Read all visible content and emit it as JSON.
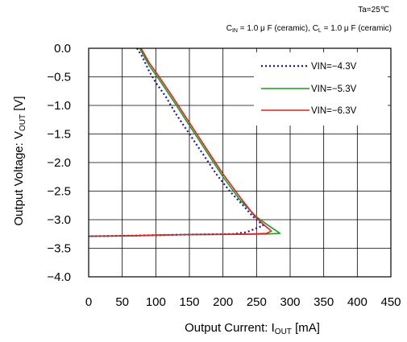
{
  "chart_data": {
    "type": "line",
    "conditions": {
      "temperature": "Ta=25℃",
      "cin_main": "C",
      "cin_sub": "IN",
      "cin_rest": " = 1.0 μ F (ceramic), ",
      "cl_main": "C",
      "cl_sub": "L",
      "cl_rest": " = 1.0 μ F (ceramic)"
    },
    "xlabel": {
      "main": "Output Current: I",
      "sub": "OUT",
      "unit": " [mA]"
    },
    "ylabel": {
      "main": "Output Voltage: V",
      "sub": "OUT",
      "unit": " [V]"
    },
    "xlim": [
      0,
      450
    ],
    "ylim": [
      -4.0,
      0.0
    ],
    "xticks": [
      "0",
      "50",
      "100",
      "150",
      "200",
      "250",
      "300",
      "350",
      "400",
      "450"
    ],
    "yticks": [
      "0.0",
      "−0.5",
      "−1.0",
      "−1.5",
      "−2.0",
      "−2.5",
      "−3.0",
      "−3.5",
      "−4.0"
    ],
    "grid": true,
    "legend_position": "top-right",
    "series": [
      {
        "name": "VIN=−4.3V",
        "color": "#1a1aa6",
        "style": "dotted",
        "points": [
          [
            72,
            0.0
          ],
          [
            80,
            -0.15
          ],
          [
            90,
            -0.4
          ],
          [
            100,
            -0.6
          ],
          [
            115,
            -0.85
          ],
          [
            130,
            -1.15
          ],
          [
            150,
            -1.5
          ],
          [
            170,
            -1.85
          ],
          [
            190,
            -2.2
          ],
          [
            210,
            -2.5
          ],
          [
            230,
            -2.75
          ],
          [
            245,
            -2.95
          ],
          [
            255,
            -3.05
          ],
          [
            260,
            -3.1
          ],
          [
            250,
            -3.15
          ],
          [
            235,
            -3.22
          ],
          [
            215,
            -3.25
          ],
          [
            150,
            -3.26
          ],
          [
            100,
            -3.27
          ],
          [
            60,
            -3.28
          ],
          [
            0,
            -3.29
          ]
        ]
      },
      {
        "name": "VIN=−5.3V",
        "color": "#1f9a1f",
        "style": "solid",
        "points": [
          [
            76,
            0.0
          ],
          [
            90,
            -0.3
          ],
          [
            105,
            -0.55
          ],
          [
            125,
            -0.9
          ],
          [
            150,
            -1.35
          ],
          [
            175,
            -1.8
          ],
          [
            200,
            -2.25
          ],
          [
            225,
            -2.65
          ],
          [
            250,
            -2.95
          ],
          [
            265,
            -3.08
          ],
          [
            280,
            -3.2
          ],
          [
            285,
            -3.24
          ],
          [
            265,
            -3.25
          ],
          [
            240,
            -3.255
          ],
          [
            150,
            -3.26
          ],
          [
            100,
            -3.27
          ],
          [
            70,
            -3.28
          ],
          [
            0,
            -3.29
          ]
        ]
      },
      {
        "name": "VIN=−6.3V",
        "color": "#e02020",
        "style": "solid",
        "points": [
          [
            78,
            0.0
          ],
          [
            90,
            -0.25
          ],
          [
            105,
            -0.5
          ],
          [
            125,
            -0.85
          ],
          [
            150,
            -1.3
          ],
          [
            175,
            -1.75
          ],
          [
            200,
            -2.2
          ],
          [
            225,
            -2.6
          ],
          [
            248,
            -2.95
          ],
          [
            262,
            -3.1
          ],
          [
            272,
            -3.2
          ],
          [
            265,
            -3.24
          ],
          [
            240,
            -3.25
          ],
          [
            150,
            -3.26
          ],
          [
            100,
            -3.27
          ],
          [
            70,
            -3.28
          ],
          [
            0,
            -3.29
          ]
        ]
      }
    ]
  }
}
